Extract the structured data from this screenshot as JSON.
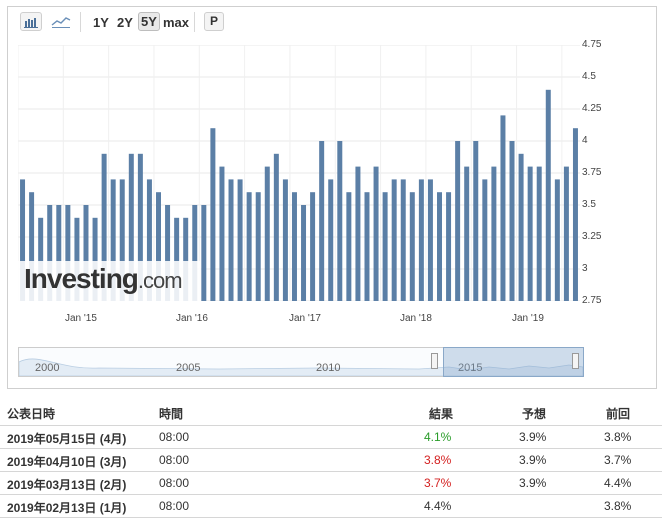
{
  "toolbar": {
    "bar_icon": "bar-chart-icon",
    "line_icon": "line-chart-icon",
    "ranges": [
      "1Y",
      "2Y",
      "5Y",
      "max"
    ],
    "active_range": "5Y",
    "print_label": "P"
  },
  "chart_data": {
    "type": "bar",
    "color": "#5b7fa6",
    "ylim": [
      2.75,
      4.75
    ],
    "yticks": [
      "4.75",
      "4.5",
      "4.25",
      "4",
      "3.75",
      "3.5",
      "3.25",
      "3",
      "2.75"
    ],
    "xticks": [
      "Jan '15",
      "Jan '16",
      "Jan '17",
      "Jan '18",
      "Jan '19"
    ],
    "values": [
      3.7,
      3.6,
      3.4,
      3.5,
      3.5,
      3.5,
      3.4,
      3.5,
      3.4,
      3.9,
      3.7,
      3.7,
      3.9,
      3.9,
      3.7,
      3.6,
      3.5,
      3.4,
      3.4,
      3.5,
      3.5,
      4.1,
      3.8,
      3.7,
      3.7,
      3.6,
      3.6,
      3.8,
      3.9,
      3.7,
      3.6,
      3.5,
      3.6,
      4.0,
      3.7,
      4.0,
      3.6,
      3.8,
      3.6,
      3.8,
      3.6,
      3.7,
      3.7,
      3.6,
      3.7,
      3.7,
      3.6,
      3.6,
      4.0,
      3.8,
      4.0,
      3.7,
      3.8,
      4.2,
      4.0,
      3.9,
      3.8,
      3.8,
      4.4,
      3.7,
      3.8,
      4.1
    ]
  },
  "watermark": {
    "brand": "Investing",
    "suffix": ".com"
  },
  "navigator": {
    "labels": [
      "2000",
      "2005",
      "2010",
      "2015"
    ]
  },
  "table": {
    "headers": [
      "公表日時",
      "時間",
      "結果",
      "予想",
      "前回"
    ],
    "rows": [
      {
        "date": "2019年05月15日 (4月)",
        "time": "08:00",
        "actual": "4.1%",
        "actual_color": "green",
        "forecast": "3.9%",
        "previous": "3.8%"
      },
      {
        "date": "2019年04月10日 (3月)",
        "time": "08:00",
        "actual": "3.8%",
        "actual_color": "red",
        "forecast": "3.9%",
        "previous": "3.7%"
      },
      {
        "date": "2019年03月13日 (2月)",
        "time": "08:00",
        "actual": "3.7%",
        "actual_color": "red",
        "forecast": "3.9%",
        "previous": "4.4%"
      },
      {
        "date": "2019年02月13日 (1月)",
        "time": "08:00",
        "actual": "4.4%",
        "actual_color": "none",
        "forecast": "",
        "previous": "3.8%"
      }
    ]
  }
}
